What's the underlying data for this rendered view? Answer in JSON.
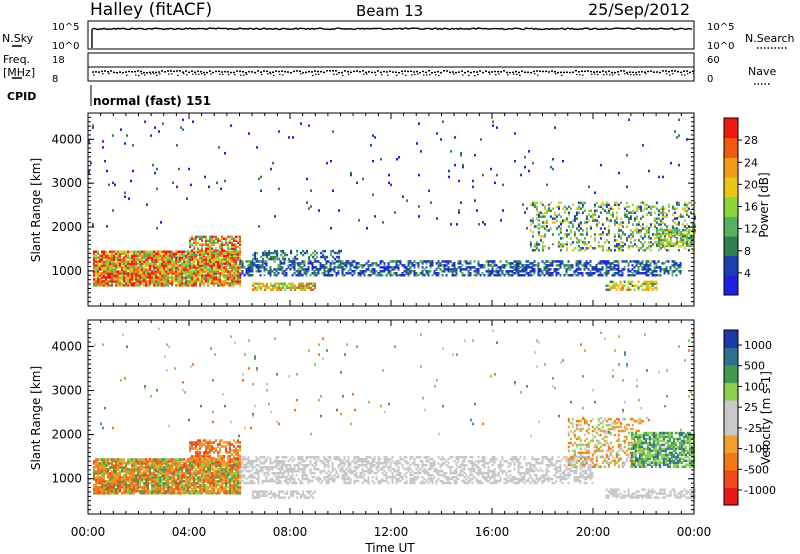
{
  "header": {
    "station": "Halley (fitACF)",
    "beam": "Beam 13",
    "date": "25/Sep/2012"
  },
  "top_panels": {
    "nsky_label": "N.Sky",
    "nsearch_label": "N.Search",
    "nsky_ticks": [
      "10^5",
      "10^0"
    ],
    "nsearch_ticks": [
      "10^5",
      "10^0"
    ],
    "freq_label_1": "Freq.",
    "freq_label_2": "[MHz]",
    "freq_ticks": [
      "18",
      "8"
    ],
    "nave_label": "Nave",
    "nave_ticks": [
      "60",
      "0"
    ],
    "cpid_label": "CPID",
    "cpid_text": "normal (fast) 151"
  },
  "colors": {
    "power": [
      "#2020e0",
      "#1a3fb0",
      "#2f7f4f",
      "#56b15f",
      "#8fd43c",
      "#e8c61a",
      "#f29a1a",
      "#f05a10",
      "#ee1a12"
    ],
    "velocity": [
      "#e81818",
      "#f04818",
      "#f07a18",
      "#f0a030",
      "#c8c8c8",
      "#c8c8c8",
      "#8ad04a",
      "#3f9c4f",
      "#2f6f8f",
      "#1a3aa8"
    ]
  },
  "chart_data": [
    {
      "type": "heatmap",
      "name": "power",
      "xlabel": "",
      "ylabel": "Slant Range [km]",
      "ylim": [
        200,
        4600
      ],
      "yticks": [
        1000,
        2000,
        3000,
        4000
      ],
      "xlim_hours": [
        0,
        24
      ],
      "colorbar": {
        "label": "Power [dB]",
        "ticks": [
          "4",
          "8",
          "12",
          "16",
          "20",
          "24",
          "28"
        ],
        "range": [
          0,
          32
        ]
      },
      "features": [
        {
          "desc": "strong echo band",
          "t": [
            0.0,
            6.0
          ],
          "range_km": [
            700,
            1800
          ],
          "level": "high"
        },
        {
          "desc": "main echo band",
          "t": [
            6.0,
            24.0
          ],
          "range_km": [
            900,
            1400
          ],
          "level": "low"
        },
        {
          "desc": "near-range band",
          "t": [
            6.5,
            9.0
          ],
          "range_km": [
            550,
            800
          ],
          "level": "mid"
        },
        {
          "desc": "far-range scatter",
          "t": [
            18.0,
            24.0
          ],
          "range_km": [
            1500,
            2600
          ],
          "level": "mixed"
        }
      ]
    },
    {
      "type": "heatmap",
      "name": "velocity",
      "xlabel": "Time UT",
      "ylabel": "Slant Range [km]",
      "ylim": [
        200,
        4600
      ],
      "yticks": [
        1000,
        2000,
        3000,
        4000
      ],
      "xticks": [
        "00:00",
        "04:00",
        "08:00",
        "12:00",
        "16:00",
        "20:00",
        "00:00"
      ],
      "xlim_hours": [
        0,
        24
      ],
      "colorbar": {
        "label": "Velocity [m s-1]",
        "ticks": [
          "1000",
          "500",
          "100",
          "25",
          "-25",
          "-100",
          "-500",
          "-1000"
        ]
      },
      "features": [
        {
          "desc": "receding (orange) band",
          "t": [
            0.0,
            6.0
          ],
          "range_km": [
            700,
            1900
          ],
          "level": "negative"
        },
        {
          "desc": "ground scatter (grey)",
          "t": [
            6.0,
            20.0
          ],
          "range_km": [
            900,
            1600
          ],
          "level": "near-zero"
        },
        {
          "desc": "approaching (green) patch",
          "t": [
            21.5,
            24.0
          ],
          "range_km": [
            1300,
            2100
          ],
          "level": "positive"
        }
      ]
    }
  ]
}
